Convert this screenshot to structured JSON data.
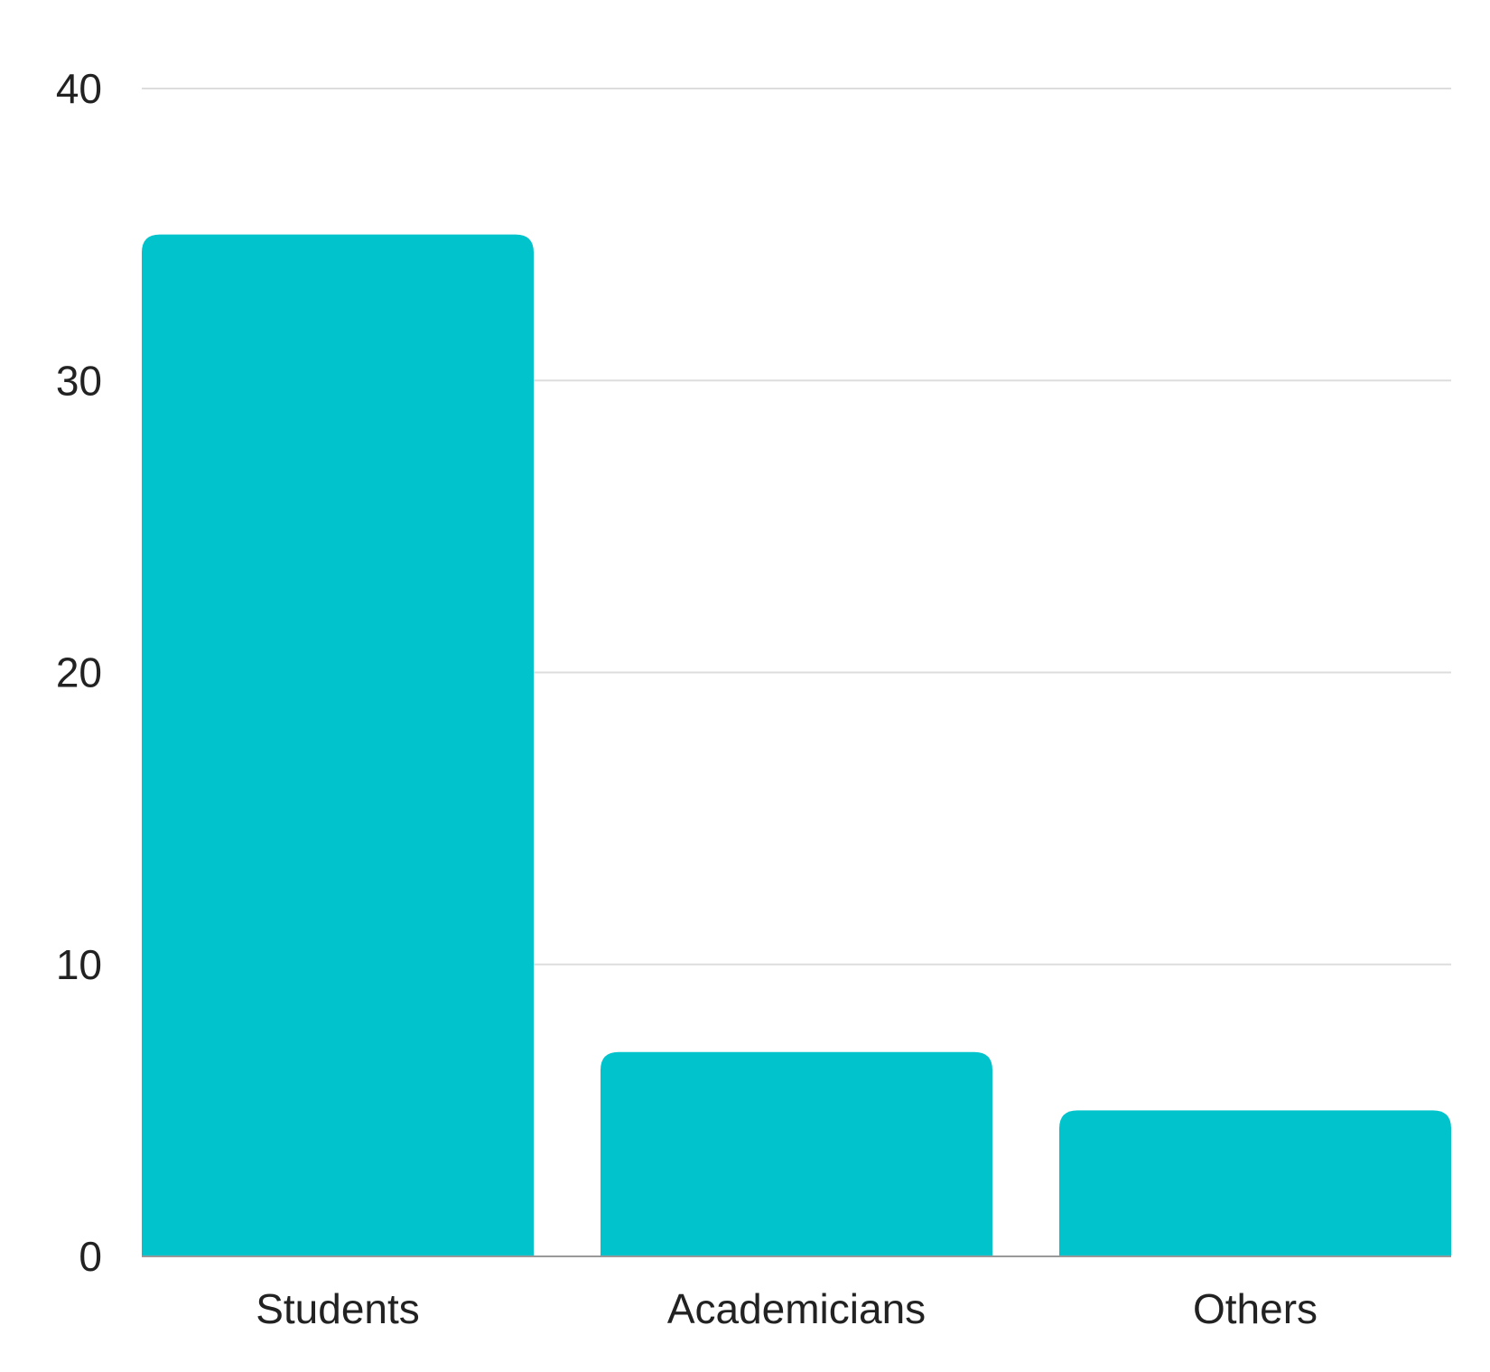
{
  "chart_data": {
    "type": "bar",
    "categories": [
      "Students",
      "Academicians",
      "Others"
    ],
    "values": [
      35,
      7,
      5
    ],
    "ylim": [
      0,
      40
    ],
    "yticks": [
      0,
      10,
      20,
      30,
      40
    ],
    "grid": true,
    "bar_color": "#00C3CB",
    "grid_color": "#DDDDDD",
    "axis_color": "#999999"
  }
}
